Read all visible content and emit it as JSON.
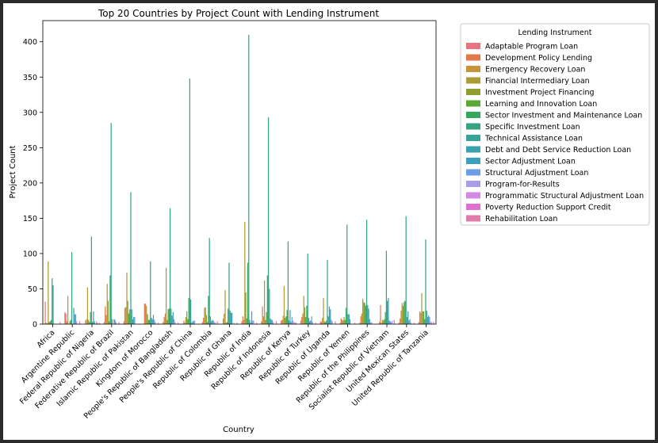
{
  "chart_data": {
    "type": "bar",
    "title": "Top 20 Countries by Project Count with Lending Instrument",
    "xlabel": "Country",
    "ylabel": "Project Count",
    "ylim": [
      0,
      430
    ],
    "yticks": [
      0,
      50,
      100,
      150,
      200,
      250,
      300,
      350,
      400
    ],
    "legend_title": "Lending Instrument",
    "legend_position": "outside-top-right",
    "categories": [
      "Africa",
      "Argentine Republic",
      "Federal Republic of Nigeria",
      "Federative Republic of Brazil",
      "Islamic Republic of Pakistan",
      "Kingdom of Morocco",
      "People's Republic of Bangladesh",
      "People's Republic of China",
      "Republic of Colombia",
      "Republic of Ghana",
      "Republic of India",
      "Republic of Indonesia",
      "Republic of Kenya",
      "Republic of Turkey",
      "Republic of Uganda",
      "Republic of Yemen",
      "Republic of the Philippines",
      "Socialist Republic of Vietnam",
      "United Mexican States",
      "United Republic of Tanzania"
    ],
    "series": [
      {
        "name": "Adaptable Program Loan",
        "color": "#e8747f",
        "values": [
          32,
          17,
          0,
          3,
          4,
          0,
          3,
          0,
          3,
          0,
          4,
          4,
          5,
          5,
          4,
          2,
          2,
          3,
          2,
          3
        ]
      },
      {
        "name": "Development Policy Lending",
        "color": "#e2794a",
        "values": [
          2,
          15,
          5,
          25,
          23,
          29,
          10,
          5,
          9,
          8,
          11,
          25,
          6,
          10,
          3,
          8,
          11,
          27,
          8,
          18
        ]
      },
      {
        "name": "Emergency Recovery Loan",
        "color": "#c99338",
        "values": [
          1,
          4,
          7,
          13,
          24,
          29,
          15,
          2,
          23,
          15,
          6,
          11,
          12,
          15,
          9,
          6,
          15,
          2,
          19,
          16
        ]
      },
      {
        "name": "Financial Intermediary Loan",
        "color": "#ac9b37",
        "values": [
          89,
          40,
          52,
          57,
          73,
          26,
          80,
          10,
          24,
          48,
          145,
          62,
          54,
          40,
          37,
          5,
          36,
          6,
          30,
          44
        ]
      },
      {
        "name": "Investment Project Financing",
        "color": "#8f9d33",
        "values": [
          3,
          0,
          6,
          33,
          33,
          14,
          6,
          18,
          13,
          2,
          45,
          6,
          9,
          24,
          4,
          10,
          31,
          5,
          26,
          18
        ]
      },
      {
        "name": "Learning and Innovation Loan",
        "color": "#5ca836",
        "values": [
          4,
          4,
          3,
          4,
          15,
          6,
          21,
          7,
          3,
          3,
          8,
          17,
          11,
          10,
          3,
          6,
          30,
          7,
          31,
          18
        ]
      },
      {
        "name": "Sector Investment and Maintenance Loan",
        "color": "#33a85e",
        "values": [
          6,
          6,
          17,
          69,
          21,
          6,
          22,
          37,
          40,
          22,
          87,
          69,
          20,
          26,
          5,
          23,
          26,
          17,
          33,
          7
        ]
      },
      {
        "name": "Specific Investment Loan",
        "color": "#36a483",
        "values": [
          65,
          102,
          124,
          285,
          187,
          89,
          164,
          348,
          122,
          87,
          410,
          293,
          117,
          100,
          91,
          141,
          148,
          104,
          153,
          120
        ]
      },
      {
        "name": "Technical Assistance Loan",
        "color": "#38a39a",
        "values": [
          55,
          0,
          3,
          7,
          21,
          9,
          22,
          35,
          11,
          19,
          6,
          50,
          5,
          9,
          11,
          14,
          27,
          33,
          10,
          19
        ]
      },
      {
        "name": "Debt and Debt Service Reduction Loan",
        "color": "#3aa2ad",
        "values": [
          0,
          23,
          18,
          0,
          7,
          7,
          12,
          2,
          4,
          16,
          2,
          8,
          20,
          4,
          25,
          14,
          22,
          37,
          18,
          10
        ]
      },
      {
        "name": "Sector Adjustment Loan",
        "color": "#3d9fc0",
        "values": [
          0,
          14,
          4,
          7,
          10,
          13,
          17,
          4,
          6,
          16,
          18,
          6,
          3,
          5,
          21,
          7,
          7,
          5,
          5,
          12
        ]
      },
      {
        "name": "Structural Adjustment Loan",
        "color": "#6e9de8",
        "values": [
          0,
          14,
          0,
          6,
          10,
          6,
          7,
          5,
          5,
          0,
          5,
          6,
          10,
          11,
          6,
          0,
          2,
          4,
          7,
          10
        ]
      },
      {
        "name": "Program-for-Results",
        "color": "#a99ce8",
        "values": [
          0,
          4,
          4,
          3,
          0,
          3,
          3,
          5,
          3,
          2,
          5,
          3,
          5,
          3,
          4,
          0,
          3,
          3,
          2,
          3
        ]
      },
      {
        "name": "Programmatic Structural Adjustment Loan",
        "color": "#d38ae6",
        "values": [
          0,
          0,
          2,
          0,
          0,
          0,
          0,
          0,
          2,
          0,
          0,
          0,
          3,
          0,
          0,
          0,
          0,
          5,
          0,
          3
        ]
      },
      {
        "name": "Poverty Reduction Support Credit",
        "color": "#e06fd0",
        "values": [
          0,
          0,
          0,
          0,
          0,
          0,
          0,
          0,
          0,
          0,
          0,
          0,
          2,
          0,
          0,
          0,
          0,
          0,
          0,
          0
        ]
      },
      {
        "name": "Rehabilitation Loan",
        "color": "#e17bab",
        "values": [
          3,
          4,
          2,
          3,
          0,
          2,
          2,
          0,
          4,
          2,
          2,
          4,
          2,
          2,
          4,
          2,
          0,
          6,
          2,
          3
        ]
      }
    ]
  }
}
